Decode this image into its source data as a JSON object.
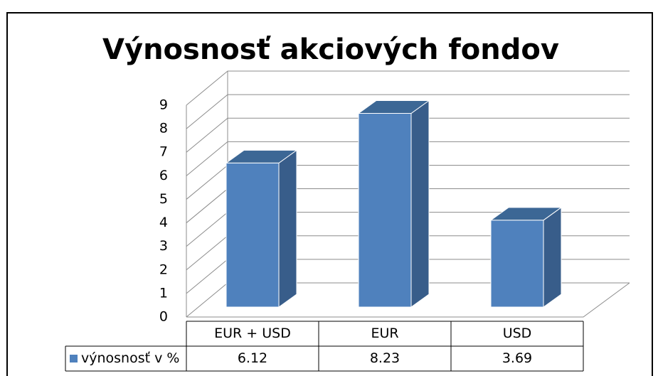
{
  "chart_data": {
    "type": "bar3d",
    "title": "Výnosnosť akciových fondov",
    "categories": [
      "EUR + USD",
      "EUR",
      "USD"
    ],
    "series": [
      {
        "name": "výnosnosť v %",
        "color": "#4f81bd",
        "values": [
          6.12,
          8.23,
          3.69
        ]
      }
    ],
    "ylim": [
      0,
      9
    ],
    "yticks": [
      0,
      1,
      2,
      3,
      4,
      5,
      6,
      7,
      8,
      9
    ],
    "grid": true,
    "data_table": true
  }
}
